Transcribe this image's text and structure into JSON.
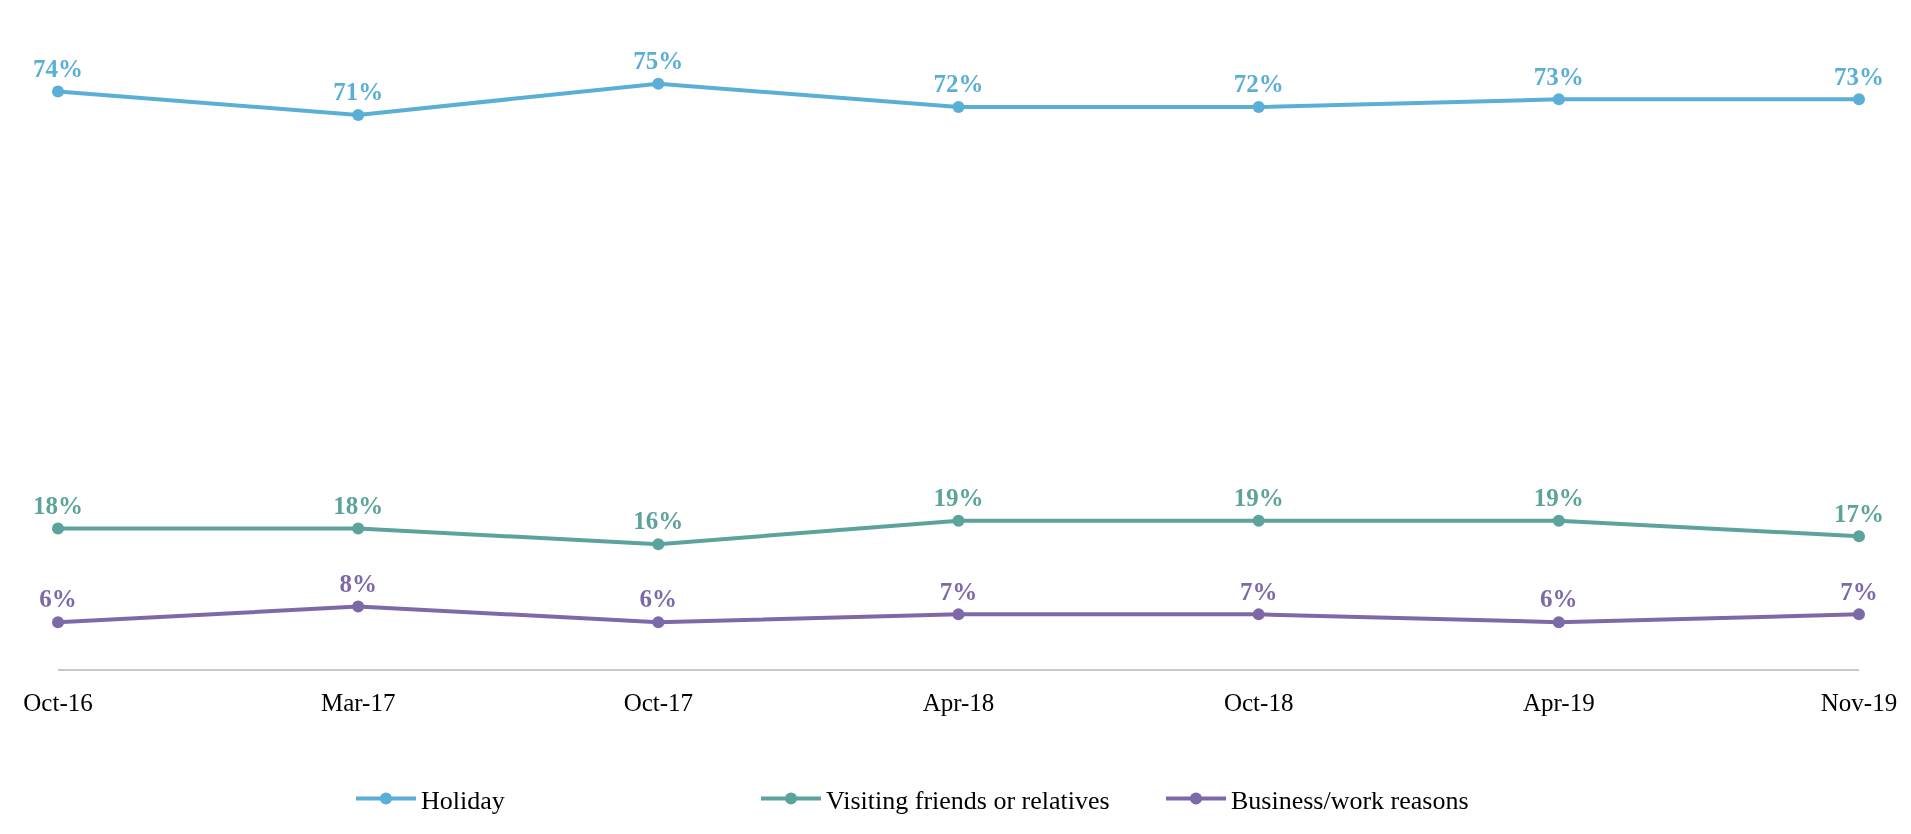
{
  "chart_data": {
    "type": "line",
    "categories": [
      "Oct-16",
      "Mar-17",
      "Oct-17",
      "Apr-18",
      "Oct-18",
      "Apr-19",
      "Nov-19"
    ],
    "series": [
      {
        "name": "Holiday",
        "color": "#5aafd6",
        "values": [
          74,
          71,
          75,
          72,
          72,
          73,
          73
        ],
        "value_labels": [
          "74%",
          "71%",
          "75%",
          "72%",
          "72%",
          "73%",
          "73%"
        ]
      },
      {
        "name": "Visiting friends or relatives",
        "color": "#5ba39b",
        "values": [
          18,
          18,
          16,
          19,
          19,
          19,
          17
        ],
        "value_labels": [
          "18%",
          "18%",
          "16%",
          "19%",
          "19%",
          "19%",
          "17%"
        ]
      },
      {
        "name": "Business/work reasons",
        "color": "#7e69a8",
        "values": [
          6,
          8,
          6,
          7,
          7,
          6,
          7
        ],
        "value_labels": [
          "6%",
          "8%",
          "6%",
          "7%",
          "7%",
          "6%",
          "7%"
        ]
      }
    ],
    "tick_labels": "x",
    "legend": "bottom",
    "marker": "circle",
    "line_style": "solid"
  }
}
